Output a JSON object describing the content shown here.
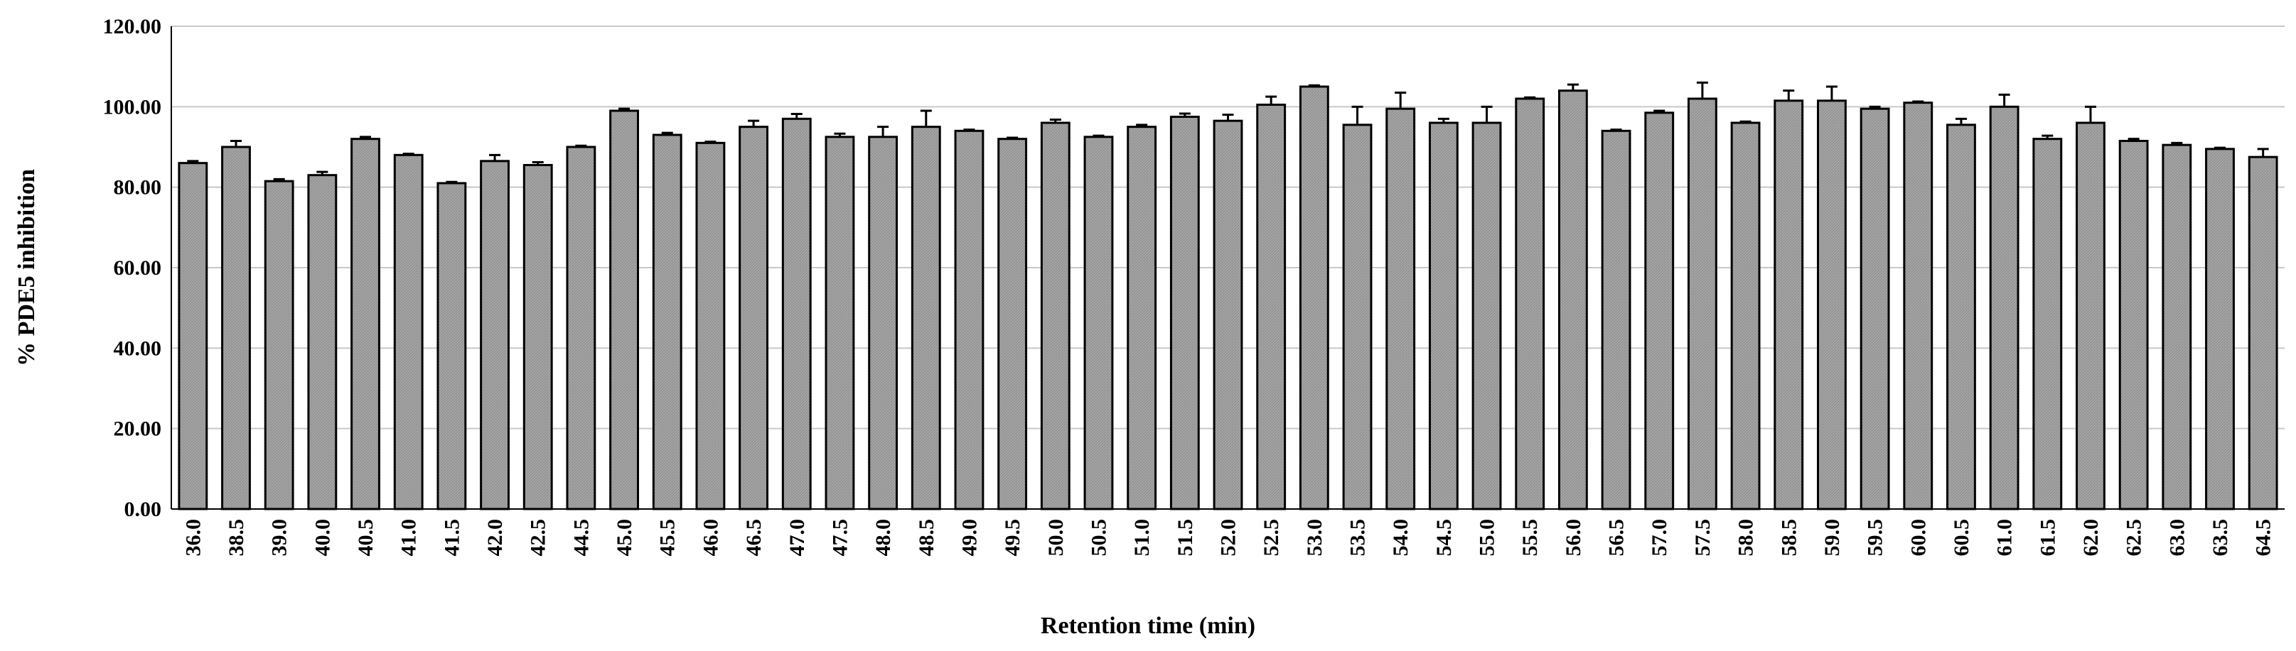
{
  "chart_data": {
    "type": "bar",
    "x_label": "Retention time (min)",
    "y_label": "% PDE5 inhibition",
    "categories": [
      "36.0",
      "38.5",
      "39.0",
      "40.0",
      "40.5",
      "41.0",
      "41.5",
      "42.0",
      "42.5",
      "44.5",
      "45.0",
      "45.5",
      "46.0",
      "46.5",
      "47.0",
      "47.5",
      "48.0",
      "48.5",
      "49.0",
      "49.5",
      "50.0",
      "50.5",
      "51.0",
      "51.5",
      "52.0",
      "52.5",
      "53.0",
      "53.5",
      "54.0",
      "54.5",
      "55.0",
      "55.5",
      "56.0",
      "56.5",
      "57.0",
      "57.5",
      "58.0",
      "58.5",
      "59.0",
      "59.5",
      "60.0",
      "60.5",
      "61.0",
      "61.5",
      "62.0",
      "62.5",
      "63.0",
      "63.5",
      "64.5"
    ],
    "values": [
      86,
      90,
      81.5,
      83,
      92,
      88,
      81,
      86.5,
      85.5,
      90,
      99,
      93,
      91,
      95,
      97,
      92.5,
      92.5,
      95,
      94,
      92,
      96,
      92.5,
      95,
      97.5,
      96.5,
      100.5,
      105,
      95.5,
      99.5,
      96,
      96,
      102,
      104,
      94,
      98.5,
      102,
      96,
      101.5,
      101.5,
      99.5,
      101,
      95.5,
      100,
      92,
      96,
      91.5,
      90.5,
      89.5,
      87.5
    ],
    "errors": [
      0.5,
      1.5,
      0.5,
      0.8,
      0.5,
      0.3,
      0.3,
      1.5,
      0.7,
      0.3,
      0.5,
      0.5,
      0.3,
      1.5,
      1.2,
      0.8,
      2.5,
      4,
      0.3,
      0.3,
      0.8,
      0.3,
      0.5,
      0.8,
      1.5,
      2,
      0.3,
      4.5,
      4,
      1,
      4,
      0.3,
      1.5,
      0.3,
      0.5,
      4,
      0.3,
      2.5,
      3.5,
      0.5,
      0.3,
      1.5,
      3,
      0.8,
      4,
      0.5,
      0.5,
      0.3,
      2
    ],
    "color": "#a6a6a6",
    "ylim": [
      0,
      120
    ],
    "yticks": [
      {
        "value": 0,
        "label": "0.00"
      },
      {
        "value": 20,
        "label": "20.00"
      },
      {
        "value": 40,
        "label": "40.00"
      },
      {
        "value": 60,
        "label": "60.00"
      },
      {
        "value": 80,
        "label": "80.00"
      },
      {
        "value": 100,
        "label": "100.00"
      },
      {
        "value": 120,
        "label": "120.00"
      }
    ],
    "grid": true
  }
}
